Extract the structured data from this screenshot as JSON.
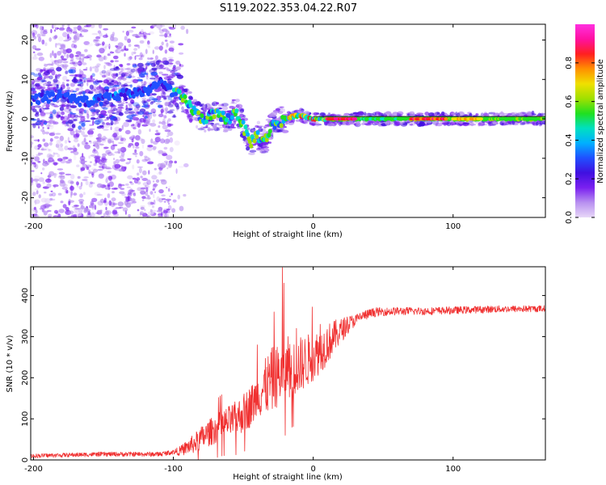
{
  "figure": {
    "title": "S119.2022.353.04.22.R07"
  },
  "colors": {
    "snr_line": "#f03030",
    "ridge": "#202020",
    "colormap": [
      "#e8d8f8",
      "#b890f0",
      "#7a20f0",
      "#4010e0",
      "#2050ff",
      "#00b0ff",
      "#00e0c0",
      "#20e020",
      "#a0e000",
      "#f0e000",
      "#ff9000",
      "#ff2020",
      "#ff10a0",
      "#ff30e0"
    ]
  },
  "chart_data": [
    {
      "type": "heatmap",
      "name": "spectrogram",
      "title": "",
      "xlabel": "Height of straight line (km)",
      "ylabel": "Frequency (Hz)",
      "xlim": [
        -202,
        166
      ],
      "ylim": [
        -25,
        24
      ],
      "xticks": [
        -200,
        -100,
        0,
        100
      ],
      "yticks": [
        -20,
        -10,
        0,
        10,
        20
      ],
      "colorbar": {
        "label": "Normalized spectral amplitude",
        "range": [
          0,
          1
        ],
        "ticks": [
          "0.0",
          "0.2",
          "0.4",
          "0.6",
          "0.8"
        ],
        "tick_values": [
          0,
          0.2,
          0.4,
          0.6,
          0.8
        ]
      },
      "ridge_hz": [
        [
          -200,
          5
        ],
        [
          -180,
          6
        ],
        [
          -160,
          4
        ],
        [
          -140,
          6
        ],
        [
          -120,
          7
        ],
        [
          -110,
          9
        ],
        [
          -100,
          7
        ],
        [
          -90,
          4
        ],
        [
          -80,
          0
        ],
        [
          -70,
          1
        ],
        [
          -60,
          0
        ],
        [
          -55,
          2
        ],
        [
          -50,
          -2
        ],
        [
          -45,
          -6
        ],
        [
          -40,
          -4
        ],
        [
          -35,
          -6
        ],
        [
          -30,
          -2
        ],
        [
          -25,
          -1
        ],
        [
          -20,
          0
        ],
        [
          -10,
          1
        ],
        [
          0,
          0
        ],
        [
          10,
          0
        ],
        [
          30,
          0
        ],
        [
          60,
          0
        ],
        [
          100,
          0
        ],
        [
          130,
          0
        ],
        [
          166,
          0
        ]
      ],
      "hot_segments": [
        {
          "x": [
            10,
            30
          ],
          "level": 0.95
        },
        {
          "x": [
            70,
            95
          ],
          "level": 0.9
        },
        {
          "x": [
            100,
            120
          ],
          "level": 0.8
        },
        {
          "x": [
            130,
            160
          ],
          "level": 0.6
        },
        {
          "x": [
            35,
            65
          ],
          "level": 0.55
        }
      ]
    },
    {
      "type": "line",
      "name": "snr",
      "title": "",
      "xlabel": "Height of straight line (km)",
      "ylabel": "SNR (10 * v/v)",
      "xlim": [
        -202,
        166
      ],
      "ylim": [
        0,
        470
      ],
      "xticks": [
        -200,
        -100,
        0,
        100
      ],
      "yticks": [
        0,
        100,
        200,
        300,
        400
      ],
      "envelope": {
        "x": [
          -202,
          -150,
          -110,
          -95,
          -85,
          -75,
          -65,
          -55,
          -45,
          -35,
          -28,
          -22,
          -15,
          -5,
          5,
          15,
          25,
          35,
          45,
          60,
          80,
          100,
          130,
          166
        ],
        "y": [
          10,
          14,
          14,
          22,
          40,
          65,
          85,
          100,
          130,
          175,
          200,
          210,
          220,
          240,
          265,
          300,
          330,
          350,
          360,
          362,
          362,
          364,
          367,
          368
        ]
      },
      "noise_amplitude": {
        "x": [
          -202,
          -100,
          -90,
          -80,
          -60,
          -40,
          -30,
          -20,
          -10,
          0,
          10,
          20,
          30,
          50,
          166
        ],
        "y": [
          5,
          6,
          18,
          30,
          40,
          55,
          80,
          70,
          70,
          60,
          50,
          30,
          14,
          10,
          8
        ]
      },
      "spikes": [
        {
          "x": -22,
          "y": 468
        },
        {
          "x": -21,
          "y": 430
        },
        {
          "x": -28,
          "y": 360
        },
        {
          "x": -18,
          "y": 300
        },
        {
          "x": -40,
          "y": 280
        },
        {
          "x": -12,
          "y": 320
        },
        {
          "x": 5,
          "y": 330
        },
        {
          "x": -15,
          "y": 140
        },
        {
          "x": -20,
          "y": 60
        },
        {
          "x": -8,
          "y": 200
        }
      ]
    }
  ]
}
